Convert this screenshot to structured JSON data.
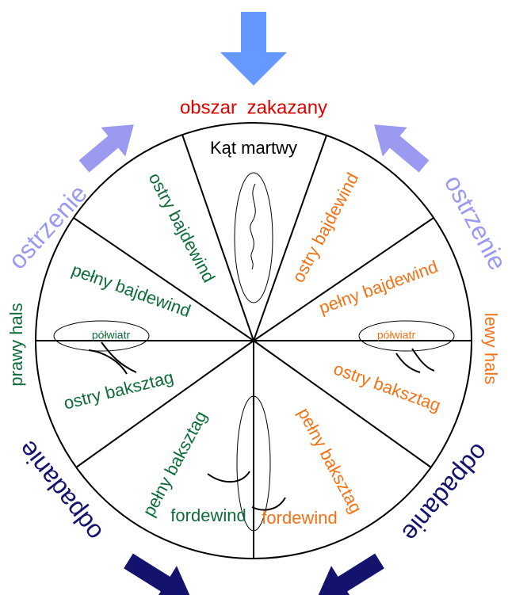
{
  "title": "obszar zakazany",
  "dead_zone": "Kąt martwy",
  "luffing": "ostrzenie",
  "bearing_away": "odpadanie",
  "left": {
    "tack": "prawy hals",
    "sectors": [
      "ostry bajdewind",
      "pełny bajdewind",
      "półwiatr",
      "ostry baksztag",
      "pełny baksztag",
      "fordewind"
    ]
  },
  "right": {
    "tack": "lewy hals",
    "sectors": [
      "ostry bajdewind",
      "pełny bajdewind",
      "półwiatr",
      "ostry baksztag",
      "pełny baksztag",
      "fordewind"
    ]
  }
}
